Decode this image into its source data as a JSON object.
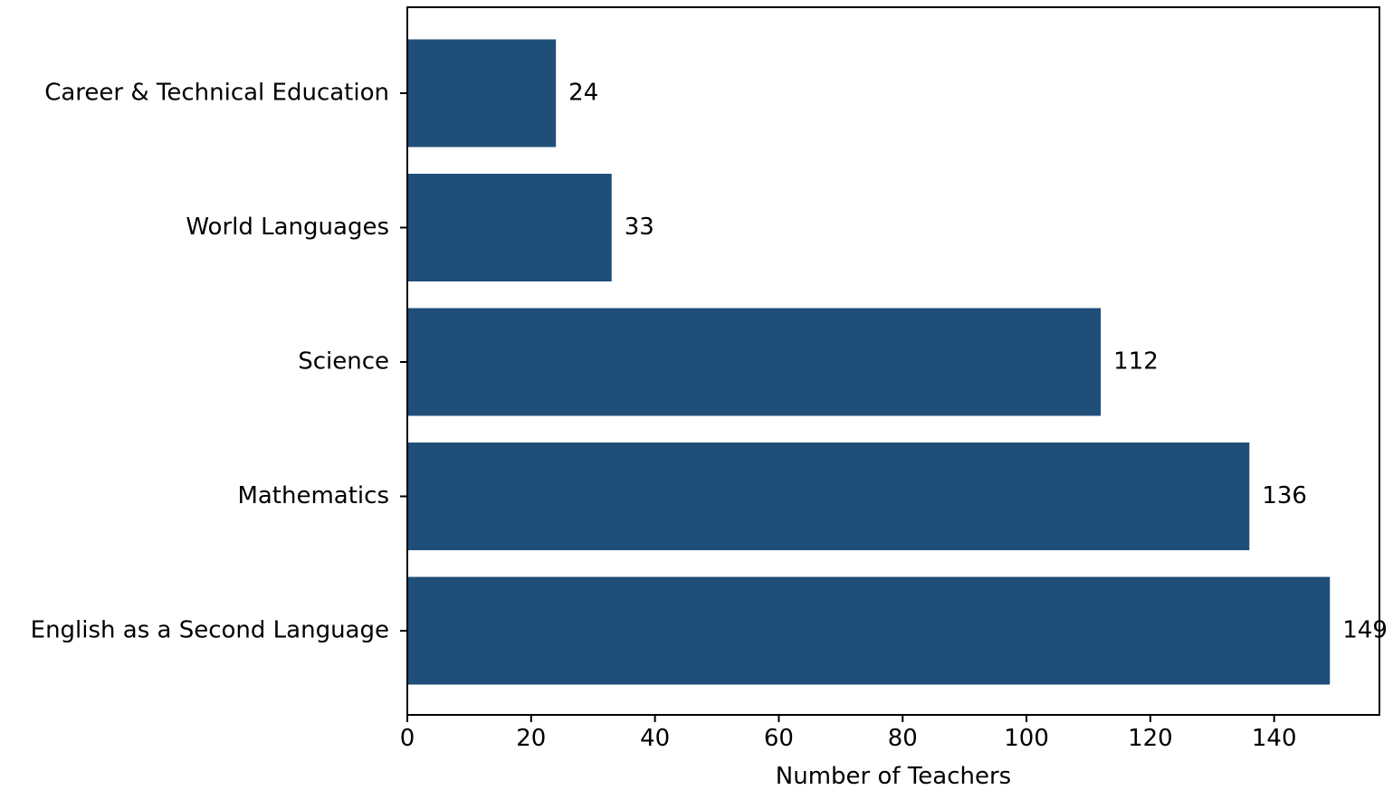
{
  "chart_data": {
    "type": "bar",
    "orientation": "horizontal",
    "title": "",
    "xlabel": "Number of Teachers",
    "ylabel": "",
    "categories": [
      "English as a Second Language",
      "Mathematics",
      "Science",
      "World Languages",
      "Career & Technical Education"
    ],
    "values": [
      149,
      136,
      112,
      33,
      24
    ],
    "value_labels": [
      "149",
      "136",
      "112",
      "33",
      "24"
    ],
    "xlim": [
      0,
      157
    ],
    "xticks": [
      0,
      20,
      40,
      60,
      80,
      100,
      120,
      140
    ],
    "xtick_labels": [
      "0",
      "20",
      "40",
      "60",
      "80",
      "100",
      "120",
      "140"
    ],
    "grid": false,
    "legend": "none",
    "bar_color": "#1f4e79"
  }
}
